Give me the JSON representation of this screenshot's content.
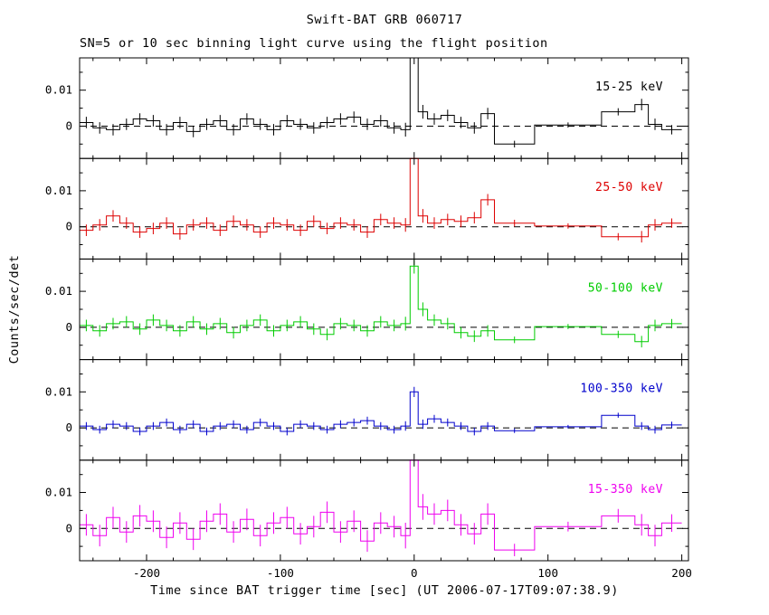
{
  "title": "Swift-BAT GRB 060717",
  "subtitle": "SN=5 or 10 sec binning light curve using the flight position",
  "xlabel": "Time since BAT trigger time [sec] (UT 2006-07-17T09:07:38.9)",
  "ylabel": "Counts/sec/det",
  "chart_data": {
    "type": "line",
    "style": "step-histogram-with-error-bars",
    "x_range": [
      -250,
      205
    ],
    "x_ticks": [
      -200,
      -100,
      0,
      100,
      200
    ],
    "x_minor_step": 20,
    "panel_y_range": [
      -0.009,
      0.019
    ],
    "y_ticks": [
      0,
      0.01
    ],
    "y_tick_labels": [
      "0",
      "0.01"
    ],
    "y_minor_step": 0.005,
    "zero_line": "dashed",
    "grid": false,
    "legend_position": "inside-top-right-per-panel",
    "bin_edges": [
      -250,
      -240,
      -230,
      -220,
      -210,
      -200,
      -190,
      -180,
      -170,
      -160,
      -150,
      -140,
      -130,
      -120,
      -110,
      -100,
      -90,
      -80,
      -70,
      -60,
      -50,
      -40,
      -30,
      -20,
      -10,
      -3,
      3,
      10,
      20,
      30,
      40,
      50,
      60,
      90,
      140,
      165,
      175,
      185,
      200
    ],
    "series": [
      {
        "name": "15-25 keV",
        "color": "#000000",
        "err10": 0.0016,
        "values": [
          0.001,
          -0.0005,
          -0.001,
          0.0005,
          0.002,
          0.0015,
          -0.001,
          0.001,
          -0.0015,
          0.0005,
          0.0015,
          -0.001,
          0.002,
          0.0005,
          -0.001,
          0.0015,
          0.0005,
          -0.0005,
          0.001,
          0.002,
          0.0025,
          0.0005,
          0.0015,
          -0.0005,
          -0.001,
          0.028,
          0.004,
          0.002,
          0.003,
          0.001,
          -0.0005,
          0.0035,
          -0.005,
          0.0003,
          0.004,
          0.006,
          0.0005,
          -0.001
        ]
      },
      {
        "name": "25-50 keV",
        "color": "#dd0000",
        "err10": 0.0016,
        "values": [
          -0.001,
          0.0005,
          0.003,
          0.001,
          -0.0015,
          -0.0005,
          0.001,
          -0.002,
          0.0005,
          0.001,
          -0.001,
          0.0015,
          0.0005,
          -0.0015,
          0.001,
          0.0005,
          -0.001,
          0.0015,
          -0.0005,
          0.001,
          0.0005,
          -0.0015,
          0.002,
          0.001,
          0.0005,
          0.024,
          0.003,
          0.001,
          0.002,
          0.0015,
          0.0025,
          0.0075,
          0.001,
          0.0002,
          -0.0028,
          -0.0028,
          0.0005,
          0.001
        ]
      },
      {
        "name": "50-100 keV",
        "color": "#00cc00",
        "err10": 0.0016,
        "values": [
          0.0005,
          -0.001,
          0.001,
          0.0015,
          -0.0005,
          0.002,
          0.0005,
          -0.001,
          0.0015,
          -0.0005,
          0.001,
          -0.0015,
          0.0005,
          0.002,
          -0.001,
          0.0005,
          0.0015,
          -0.0005,
          -0.002,
          0.001,
          0.0005,
          -0.001,
          0.0015,
          0.0005,
          0.001,
          0.017,
          0.005,
          0.002,
          0.001,
          -0.0015,
          -0.0025,
          -0.001,
          -0.0035,
          0.0002,
          -0.002,
          -0.004,
          0.0005,
          0.001
        ]
      },
      {
        "name": "100-350 keV",
        "color": "#0000cc",
        "err10": 0.0011,
        "values": [
          0.0005,
          -0.0005,
          0.001,
          0.0005,
          -0.001,
          0.0005,
          0.0015,
          -0.0005,
          0.001,
          -0.001,
          0.0005,
          0.001,
          -0.0005,
          0.0015,
          0.0005,
          -0.001,
          0.001,
          0.0005,
          -0.0005,
          0.001,
          0.0015,
          0.002,
          0.0005,
          -0.0005,
          0.0005,
          0.01,
          0.001,
          0.0025,
          0.0015,
          0.0005,
          -0.001,
          0.0005,
          -0.0008,
          0.0003,
          0.0035,
          0.0005,
          -0.0005,
          0.0008
        ]
      },
      {
        "name": "15-350 keV",
        "color": "#ee00ee",
        "err10": 0.003,
        "values": [
          0.001,
          -0.002,
          0.003,
          -0.001,
          0.0035,
          0.002,
          -0.0025,
          0.0015,
          -0.003,
          0.002,
          0.004,
          -0.001,
          0.0025,
          -0.002,
          0.0015,
          0.003,
          -0.0015,
          0.0005,
          0.0045,
          -0.001,
          0.002,
          -0.0035,
          0.0015,
          0.0005,
          -0.002,
          0.028,
          0.006,
          0.004,
          0.005,
          0.001,
          -0.0015,
          0.004,
          -0.006,
          0.0005,
          0.0035,
          0.001,
          -0.002,
          0.0015
        ]
      }
    ]
  }
}
